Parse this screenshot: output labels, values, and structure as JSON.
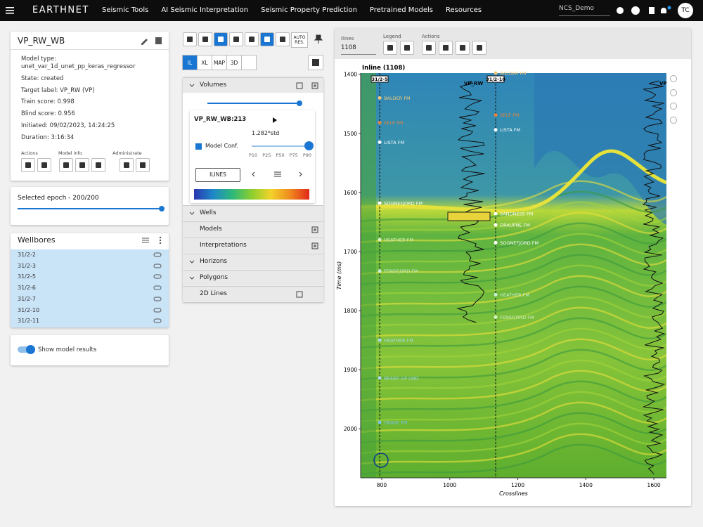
{
  "navbar": {
    "brand": "EARTHNET",
    "menu": [
      "Seismic Tools",
      "AI Seismic Interpretation",
      "Seismic Property Prediction",
      "Pretrained Models",
      "Resources"
    ],
    "project": "NCS_Demo",
    "avatar": "TC"
  },
  "model_card": {
    "title": "VP_RW_WB",
    "fields": [
      "Model type:",
      "unet_var_1d_unet_pp_keras_regressor",
      "State: created",
      "Target label: VP_RW (VP)",
      "Train score: 0.998",
      "Blind score: 0.956",
      "Initiated: 09/02/2023, 14:24:25",
      "Duration: 3:16:34"
    ],
    "groups": [
      "Actions",
      "Model info",
      "Administrate"
    ]
  },
  "epoch_card": {
    "label": "Selected epoch - 200/200"
  },
  "wellbores": {
    "title": "Wellbores",
    "items": [
      "31/2-2",
      "31/2-3",
      "31/2-5",
      "31/2-6",
      "31/2-7",
      "31/2-10",
      "31/2-11"
    ]
  },
  "toggle": {
    "label": "Show model results"
  },
  "toolbar": {
    "auto_res": [
      "AUTO",
      "RES."
    ],
    "views": [
      "IL",
      "XL",
      "MAP",
      "3D"
    ]
  },
  "layers": {
    "sections": [
      "Volumes",
      "Wells",
      "Models",
      "Interpretations",
      "Horizons",
      "Polygons",
      "2D Lines"
    ],
    "volume": {
      "name": "VP_RW_WB:213",
      "scale": "1.282*std",
      "conf_label": "Model Conf.",
      "percentiles": [
        "P10",
        "P25",
        "P50",
        "P75",
        "P90"
      ],
      "button": "ILINES"
    }
  },
  "viewer": {
    "iline_label": "Ilines",
    "iline_value": "1108",
    "legend_label": "Legend",
    "actions_label": "Actions",
    "title": "Inline (1108)",
    "y_label": "Time (ms)",
    "x_label": "Crosslines",
    "xlim": [
      738,
      1637
    ],
    "ylim": [
      1398,
      2083
    ],
    "xticks": [
      800,
      1000,
      1200,
      1400,
      1600
    ],
    "yticks": [
      1400,
      1500,
      1600,
      1700,
      1800,
      1900,
      2000
    ],
    "log_labels": [
      "VP_RW",
      "VP"
    ],
    "wells": [
      {
        "name": "31/2-5",
        "xline": 794,
        "tops": [
          {
            "name": "BALDER FM",
            "time": 1440,
            "color": "#f2c77a"
          },
          {
            "name": "SELE FM",
            "time": 1482,
            "color": "#e8843a"
          },
          {
            "name": "LISTA FM",
            "time": 1515,
            "color": "#ffffff"
          },
          {
            "name": "SOGNEFJORD FM",
            "time": 1618,
            "color": "#ffffff"
          },
          {
            "name": "HEATHER FM",
            "time": 1680,
            "color": "#d8f0c8"
          },
          {
            "name": "FENSFJORD FM",
            "time": 1733,
            "color": "#c8ecd8"
          },
          {
            "name": "HEATHER FM",
            "time": 1850,
            "color": "#a8daf0"
          },
          {
            "name": "BRENT GP UND",
            "time": 1914,
            "color": "#a8daf0"
          },
          {
            "name": "DRAKE FM",
            "time": 1989,
            "color": "#7cc0ea"
          }
        ]
      },
      {
        "name": "31/2-10",
        "xline": 1135,
        "tops": [
          {
            "name": "BALDER FM",
            "time": 1398,
            "color": "#f2c77a"
          },
          {
            "name": "SELE FM",
            "time": 1469,
            "color": "#e8843a"
          },
          {
            "name": "LISTA FM",
            "time": 1494,
            "color": "#ffffff"
          },
          {
            "name": "SANDNESS FM",
            "time": 1636,
            "color": "#ffffff"
          },
          {
            "name": "DRAUPNE FM",
            "time": 1655,
            "color": "#ffffff"
          },
          {
            "name": "SOGNEFJORD FM",
            "time": 1685,
            "color": "#ffffff"
          },
          {
            "name": "HEATHER FM",
            "time": 1773,
            "color": "#c8ecd8"
          },
          {
            "name": "FENSFJORD FM",
            "time": 1811,
            "color": "#d8f0c8"
          }
        ]
      }
    ]
  }
}
